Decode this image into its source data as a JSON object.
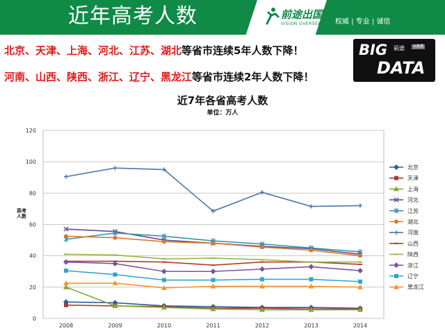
{
  "header": {
    "title": "近年高考人数",
    "logo_text": "前途出国",
    "logo_sub": "VISION OVERSEAS",
    "tagline": "权威 | 专业 | 诚信",
    "colors": {
      "brand": "#0f8a47"
    }
  },
  "headlines": [
    {
      "red": "北京、天津、上海、河北、江苏、湖北",
      "black": "等省市连续5年人数下降！"
    },
    {
      "red": "河南、山西、陕西、浙江、辽宁、黑龙江",
      "black": "等省市连续2年人数下降！"
    }
  ],
  "badge": {
    "big": "BIG",
    "data": "DATA",
    "brand": "前途",
    "tag": "大数据"
  },
  "chart_data": {
    "type": "line",
    "title": "近7年各省高考人数",
    "subtitle": "单位：万人",
    "ylabel": "高考人数",
    "xlabel": "",
    "x": [
      "2008",
      "2009",
      "2010",
      "2011",
      "2012",
      "2013",
      "2014"
    ],
    "ylim": [
      0,
      120
    ],
    "yticks": [
      0,
      20,
      40,
      60,
      80,
      100,
      120
    ],
    "grid": true,
    "legend": "right",
    "series": [
      {
        "name": "北京",
        "color": "#2e5c96",
        "marker": "diamond",
        "values": [
          10.5,
          10,
          8,
          7.5,
          7,
          7,
          6.5
        ]
      },
      {
        "name": "天津",
        "color": "#a53a3a",
        "marker": "square",
        "values": [
          8.5,
          8,
          7.5,
          6.5,
          6.5,
          6,
          6
        ]
      },
      {
        "name": "上海",
        "color": "#86a83a",
        "marker": "triangle",
        "values": [
          20,
          8,
          7,
          6,
          5.5,
          5.5,
          5.5
        ]
      },
      {
        "name": "河北",
        "color": "#5e4d8a",
        "marker": "x",
        "values": [
          57,
          55.5,
          50,
          48,
          46,
          44.5,
          41
        ]
      },
      {
        "name": "江苏",
        "color": "#3a93b0",
        "marker": "star",
        "values": [
          50.5,
          54.5,
          52.5,
          49.5,
          47.5,
          45,
          42.5
        ]
      },
      {
        "name": "湖北",
        "color": "#d47a2a",
        "marker": "circle",
        "values": [
          52.5,
          51.5,
          49,
          48,
          45.5,
          43.5,
          40
        ]
      },
      {
        "name": "河南",
        "color": "#4a76ad",
        "marker": "plus",
        "values": [
          90.5,
          96,
          95,
          68.5,
          80.5,
          71.5,
          72
        ]
      },
      {
        "name": "山西",
        "color": "#b03a32",
        "marker": "dash",
        "values": [
          36.5,
          36.5,
          36,
          34,
          36,
          36,
          34.5
        ]
      },
      {
        "name": "陕西",
        "color": "#9ab34a",
        "marker": "dash",
        "values": [
          41,
          40.5,
          38,
          38.5,
          37.5,
          36,
          36
        ]
      },
      {
        "name": "浙江",
        "color": "#7a52a0",
        "marker": "diamond",
        "values": [
          36,
          35,
          30,
          30,
          31.5,
          33,
          30.5
        ]
      },
      {
        "name": "辽宁",
        "color": "#35a6c8",
        "marker": "square",
        "values": [
          30.5,
          28,
          24.5,
          24.5,
          25,
          25,
          23.5
        ]
      },
      {
        "name": "黑龙江",
        "color": "#f49632",
        "marker": "triangle",
        "values": [
          22.5,
          22.5,
          19.5,
          20.5,
          20.5,
          20.5,
          20
        ]
      }
    ]
  }
}
